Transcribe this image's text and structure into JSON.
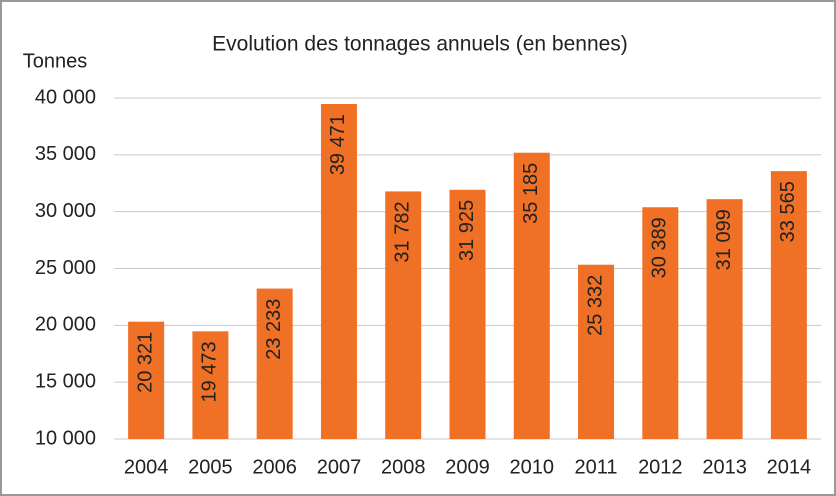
{
  "chart_data": {
    "type": "bar",
    "title": "Evolution des tonnages annuels (en bennes)",
    "y_label": "Tonnes",
    "categories": [
      "2004",
      "2005",
      "2006",
      "2007",
      "2008",
      "2009",
      "2010",
      "2011",
      "2012",
      "2013",
      "2014"
    ],
    "values": [
      20321,
      19473,
      23233,
      39471,
      31782,
      31925,
      35185,
      25332,
      30389,
      31099,
      33565
    ],
    "value_labels": [
      "20 321",
      "19 473",
      "23 233",
      "39 471",
      "31 782",
      "31 925",
      "35 185",
      "25 332",
      "30 389",
      "31 099",
      "33 565"
    ],
    "color": "#f07025",
    "ylim": [
      10000,
      40000
    ],
    "yticks": [
      {
        "value": 10000,
        "label": "10 000"
      },
      {
        "value": 15000,
        "label": "15 000"
      },
      {
        "value": 20000,
        "label": "20 000"
      },
      {
        "value": 25000,
        "label": "25 000"
      },
      {
        "value": 30000,
        "label": "30 000"
      },
      {
        "value": 35000,
        "label": "35 000"
      },
      {
        "value": 40000,
        "label": "40 000"
      }
    ],
    "grid": true
  }
}
